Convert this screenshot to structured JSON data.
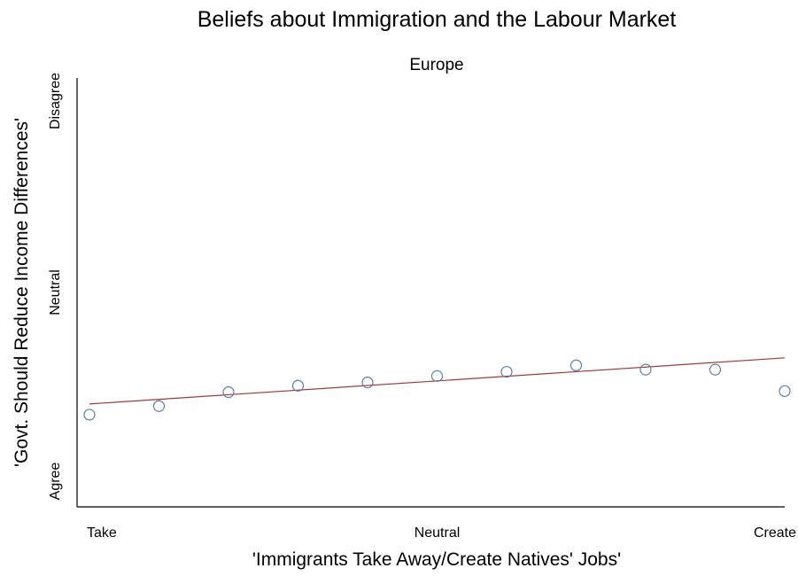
{
  "chart_data": {
    "type": "scatter",
    "title": "Beliefs about Immigration and the Labour Market",
    "subtitle": "Europe",
    "xlabel": "'Immigrants Take Away/Create Natives' Jobs'",
    "ylabel": "'Govt. Should Reduce Income Differences'",
    "xlim": [
      0,
      10
    ],
    "ylim": [
      1,
      5
    ],
    "x_ticks": [
      {
        "value": 0,
        "label": "Take"
      },
      {
        "value": 5,
        "label": "Neutral"
      },
      {
        "value": 10,
        "label": "Create"
      }
    ],
    "y_ticks": [
      {
        "value": 1,
        "label": "Agree"
      },
      {
        "value": 3,
        "label": "Neutral"
      },
      {
        "value": 5,
        "label": "Disagree"
      }
    ],
    "grid": false,
    "legend": "none",
    "series": [
      {
        "marker": "hollow-circle",
        "color": "#5b7fa6",
        "x": [
          0,
          1,
          2,
          3,
          4,
          5,
          6,
          7,
          8,
          9,
          10
        ],
        "y": [
          1.86,
          1.94,
          2.07,
          2.13,
          2.16,
          2.22,
          2.26,
          2.32,
          2.28,
          2.28,
          2.08
        ]
      }
    ],
    "fit_line": {
      "color": "#a03a3a",
      "x": [
        0,
        10
      ],
      "y": [
        1.96,
        2.39
      ]
    }
  }
}
